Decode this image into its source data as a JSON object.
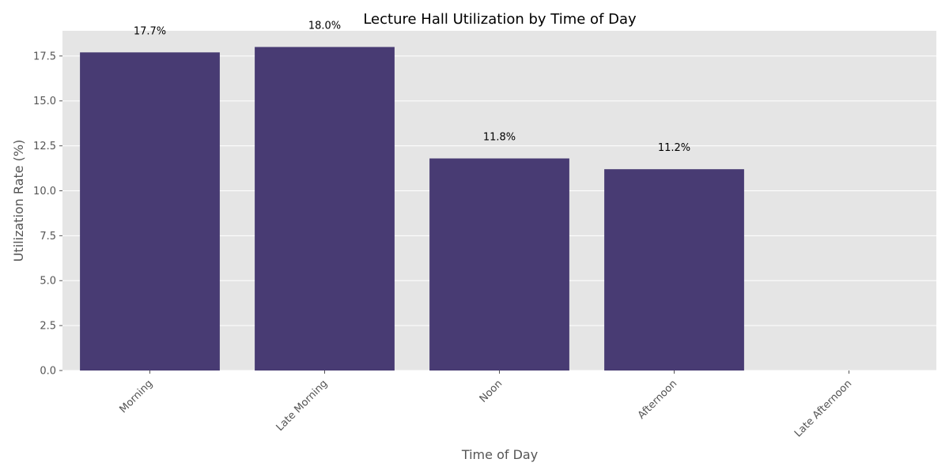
{
  "chart_data": {
    "type": "bar",
    "title": "Lecture Hall Utilization by Time of Day",
    "xlabel": "Time of Day",
    "ylabel": "Utilization Rate (%)",
    "categories": [
      "Morning",
      "Late Morning",
      "Noon",
      "Afternoon",
      "Late Afternoon"
    ],
    "values": [
      17.7,
      18.0,
      11.8,
      11.2,
      0
    ],
    "data_labels": [
      "17.7%",
      "18.0%",
      "11.8%",
      "11.2%",
      ""
    ],
    "ylim": [
      0,
      18.9
    ],
    "yticks": [
      0.0,
      2.5,
      5.0,
      7.5,
      10.0,
      12.5,
      15.0,
      17.5
    ],
    "ytick_labels": [
      "0.0",
      "2.5",
      "5.0",
      "7.5",
      "10.0",
      "12.5",
      "15.0",
      "17.5"
    ],
    "grid": true,
    "colors": {
      "bar": "#483b73",
      "plot_background": "#e5e5e5",
      "grid": "#ffffff",
      "tick_text": "#555555"
    }
  }
}
